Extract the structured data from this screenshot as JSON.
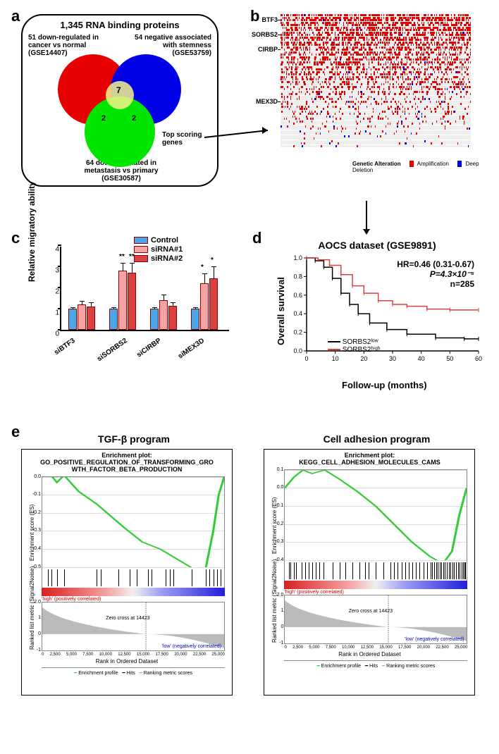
{
  "panel_a": {
    "label": "a",
    "title": "1,345 RNA binding proteins",
    "red_label": "51 down-regulated in\ncancer vs normal\n(GSE14407)",
    "blue_label": "54 negative associated\nwith stemness\n(GSE53759)",
    "green_label": "64 down-regulated in\nmetastasis vs primary\n(GSE30587)",
    "center_overlap": "7",
    "left_overlap": "2",
    "right_overlap": "2",
    "arrow_label": "Top scoring\ngenes",
    "red_color": "#e60000",
    "blue_color": "#0000e6",
    "green_color": "#00e600",
    "overlap_color": "#f5f58b"
  },
  "panel_b": {
    "label": "b",
    "genes": [
      "BTF3",
      "SORBS2",
      "CIRBP",
      "MEX3D"
    ],
    "gene_row_positions": [
      2,
      8,
      14,
      35
    ],
    "n_rows": 54,
    "legend_title": "Genetic Alteration",
    "legend_amp": "Amplification",
    "legend_del": "Deep Deletion",
    "amp_color": "#e60000",
    "del_color": "#0000e6",
    "bg_row_color": "#eeeeee"
  },
  "panel_c": {
    "label": "c",
    "groups": [
      "siBTF3",
      "siSORBS2",
      "siCIRBP",
      "siMEX3D"
    ],
    "control_color": "#4aa6e8",
    "si1_color": "#f5a3a3",
    "si2_color": "#d94040",
    "border_color": "#8b0000",
    "legend": [
      "Control",
      "siRNA#1",
      "siRNA#2"
    ],
    "y_label": "Relative migratory ability",
    "y_ticks": [
      0,
      1,
      2,
      3,
      4
    ],
    "y_max": 4,
    "values": {
      "siBTF3": {
        "ctrl": 1.0,
        "s1": 1.2,
        "s2": 1.1,
        "e_ctrl": 0.1,
        "e1": 0.2,
        "e2": 0.25
      },
      "siSORBS2": {
        "ctrl": 1.0,
        "s1": 2.8,
        "s2": 2.7,
        "e_ctrl": 0.1,
        "e1": 0.4,
        "e2": 0.5
      },
      "siCIRBP": {
        "ctrl": 1.0,
        "s1": 1.4,
        "s2": 1.15,
        "e_ctrl": 0.1,
        "e1": 0.3,
        "e2": 0.2
      },
      "siMEX3D": {
        "ctrl": 1.0,
        "s1": 2.2,
        "s2": 2.45,
        "e_ctrl": 0.1,
        "e1": 0.5,
        "e2": 0.6
      }
    },
    "stars": {
      "siSORBS2": {
        "s1": "**",
        "s2": "**"
      },
      "siMEX3D": {
        "s1": "*",
        "s2": "*"
      }
    }
  },
  "panel_d": {
    "label": "d",
    "title": "AOCS dataset (GSE9891)",
    "hr_text": "HR=0.46 (0.31-0.67)",
    "p_text": "P=4.3×10⁻⁵",
    "n_text": "n=285",
    "x_label": "Follow-up (months)",
    "y_label": "Overall survival",
    "legend_low": "SORBS2ˡᵒʷ",
    "legend_high": "SORBS2ʰⁱᵍʰ",
    "low_color": "#000000",
    "high_color": "#d94040",
    "x_ticks": [
      0,
      10,
      20,
      30,
      40,
      50,
      60
    ],
    "y_ticks": [
      "0.0",
      "0.2",
      "0.4",
      "0.6",
      "0.8",
      "1.0"
    ],
    "low_curve": [
      [
        0,
        1.0
      ],
      [
        3,
        0.97
      ],
      [
        6,
        0.9
      ],
      [
        9,
        0.78
      ],
      [
        12,
        0.62
      ],
      [
        15,
        0.5
      ],
      [
        18,
        0.4
      ],
      [
        22,
        0.3
      ],
      [
        28,
        0.23
      ],
      [
        35,
        0.18
      ],
      [
        45,
        0.14
      ],
      [
        55,
        0.13
      ],
      [
        60,
        0.13
      ]
    ],
    "high_curve": [
      [
        0,
        1.0
      ],
      [
        4,
        0.98
      ],
      [
        8,
        0.92
      ],
      [
        12,
        0.82
      ],
      [
        16,
        0.7
      ],
      [
        20,
        0.62
      ],
      [
        25,
        0.54
      ],
      [
        30,
        0.5
      ],
      [
        35,
        0.48
      ],
      [
        42,
        0.45
      ],
      [
        50,
        0.44
      ],
      [
        60,
        0.44
      ]
    ]
  },
  "panel_e": {
    "label": "e",
    "left": {
      "title": "TGF-β program",
      "plot_title": "Enrichment plot:\nGO_POSITIVE_REGULATION_OF_TRANSFORMING_GRO\nWTH_FACTOR_BETA_PRODUCTION",
      "es_y_label": "Enrichment score (ES)",
      "rank_y_label": "Ranked list metric (Signal2Noise)",
      "es_ticks": [
        "0.0",
        "-0.1",
        "-0.2",
        "-0.3",
        "-0.4",
        "-0.5"
      ],
      "rank_ticks": [
        "2.0",
        "1",
        "0",
        "-1"
      ],
      "x_ticks": [
        "0",
        "2,500",
        "5,000",
        "7,500",
        "10,000",
        "12,500",
        "15,000",
        "17,500",
        "20,000",
        "22,500",
        "25,000"
      ],
      "x_title": "Rank in Ordered Dataset",
      "pos_text": "'high' (positively correlated)",
      "zero_text": "Zero cross at 14423",
      "neg_text": "'low' (negatively correlated)",
      "legend": [
        "Enrichment profile",
        "Hits",
        "Ranking metric scores"
      ],
      "es_curve": [
        [
          0,
          0
        ],
        [
          0.04,
          0.02
        ],
        [
          0.08,
          -0.03
        ],
        [
          0.12,
          0.01
        ],
        [
          0.2,
          -0.08
        ],
        [
          0.3,
          -0.15
        ],
        [
          0.45,
          -0.28
        ],
        [
          0.55,
          -0.36
        ],
        [
          0.65,
          -0.4
        ],
        [
          0.75,
          -0.46
        ],
        [
          0.85,
          -0.52
        ],
        [
          0.9,
          -0.5
        ],
        [
          0.94,
          -0.3
        ],
        [
          0.97,
          -0.1
        ],
        [
          1,
          0
        ]
      ],
      "hits": [
        0.03,
        0.05,
        0.08,
        0.12,
        0.3,
        0.32,
        0.42,
        0.48,
        0.52,
        0.58,
        0.6,
        0.68,
        0.7,
        0.72,
        0.82,
        0.9,
        0.92,
        0.94,
        0.96,
        0.98
      ],
      "line_color": "#33cc33"
    },
    "right": {
      "title": "Cell adhesion program",
      "plot_title": "Enrichment plot:\nKEGG_CELL_ADHESION_MOLECULES_CAMS",
      "es_y_label": "Enrichment score (ES)",
      "rank_y_label": "Ranked list metric (Signal2Noise)",
      "es_ticks": [
        "0.1",
        "0.0",
        "-0.1",
        "-0.2",
        "-0.3",
        "-0.4"
      ],
      "rank_ticks": [
        "2.0",
        "1",
        "0",
        "-1"
      ],
      "x_ticks": [
        "0",
        "2,500",
        "5,000",
        "7,500",
        "10,000",
        "12,500",
        "15,000",
        "17,500",
        "20,000",
        "22,500",
        "25,000"
      ],
      "x_title": "Rank in Ordered Dataset",
      "pos_text": "'high' (positively correlated)",
      "zero_text": "Zero cross at 14423",
      "neg_text": "'low' (negatively correlated)",
      "legend": [
        "Enrichment profile",
        "Hits",
        "Ranking metric scores"
      ],
      "es_curve": [
        [
          0,
          0
        ],
        [
          0.05,
          0.06
        ],
        [
          0.1,
          0.1
        ],
        [
          0.15,
          0.08
        ],
        [
          0.22,
          0.1
        ],
        [
          0.3,
          0.05
        ],
        [
          0.4,
          -0.02
        ],
        [
          0.5,
          -0.1
        ],
        [
          0.6,
          -0.2
        ],
        [
          0.7,
          -0.3
        ],
        [
          0.8,
          -0.38
        ],
        [
          0.87,
          -0.42
        ],
        [
          0.92,
          -0.35
        ],
        [
          0.96,
          -0.15
        ],
        [
          1,
          0
        ]
      ],
      "hits": [
        0.02,
        0.03,
        0.05,
        0.06,
        0.09,
        0.11,
        0.13,
        0.15,
        0.17,
        0.19,
        0.21,
        0.26,
        0.3,
        0.33,
        0.37,
        0.41,
        0.44,
        0.46,
        0.5,
        0.54,
        0.58,
        0.6,
        0.62,
        0.64,
        0.66,
        0.68,
        0.7,
        0.72,
        0.74,
        0.76,
        0.78,
        0.8,
        0.81,
        0.82,
        0.83,
        0.84,
        0.85,
        0.86,
        0.87,
        0.88,
        0.89,
        0.9,
        0.91,
        0.92,
        0.93,
        0.94,
        0.95,
        0.96,
        0.97,
        0.98,
        0.985,
        0.99
      ],
      "line_color": "#33cc33"
    }
  }
}
